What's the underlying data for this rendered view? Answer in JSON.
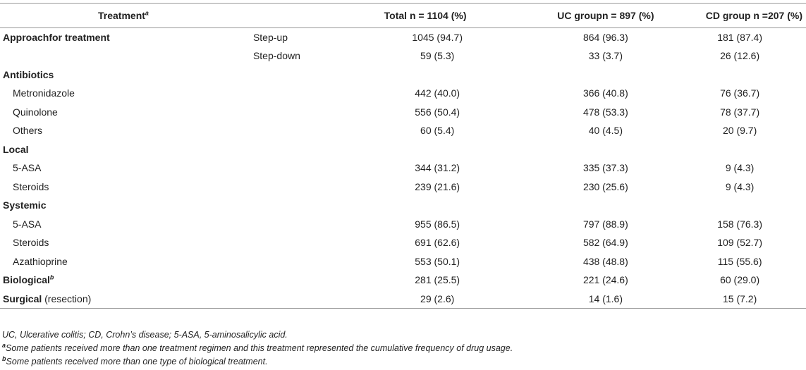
{
  "header": {
    "treatment": "Treatment",
    "treatment_sup": "a",
    "total": "Total n = 1104 (%)",
    "uc": "UC groupn = 897 (%)",
    "cd": "CD group n =207 (%)"
  },
  "rows": [
    {
      "label": "Approachfor treatment",
      "level": "Step-up",
      "total": "1045 (94.7)",
      "uc": "864 (96.3)",
      "cd": "181 (87.4)"
    },
    {
      "label": "",
      "level": "Step-down",
      "total": "59 (5.3)",
      "uc": "33 (3.7)",
      "cd": "26 (12.6)"
    },
    {
      "label": "Antibiotics"
    },
    {
      "label": "Metronidazole",
      "total": "442 (40.0)",
      "uc": "366 (40.8)",
      "cd": "76 (36.7)"
    },
    {
      "label": "Quinolone",
      "total": "556 (50.4)",
      "uc": "478 (53.3)",
      "cd": "78 (37.7)"
    },
    {
      "label": "Others",
      "total": "60 (5.4)",
      "uc": "40 (4.5)",
      "cd": "20 (9.7)"
    },
    {
      "label": "Local"
    },
    {
      "label": "5-ASA",
      "total": "344 (31.2)",
      "uc": "335 (37.3)",
      "cd": "9 (4.3)"
    },
    {
      "label": "Steroids",
      "total": "239 (21.6)",
      "uc": "230 (25.6)",
      "cd": "9 (4.3)"
    },
    {
      "label": "Systemic"
    },
    {
      "label": "5-ASA",
      "total": "955 (86.5)",
      "uc": "797 (88.9)",
      "cd": "158 (76.3)"
    },
    {
      "label": "Steroids",
      "total": "691 (62.6)",
      "uc": "582 (64.9)",
      "cd": "109 (52.7)"
    },
    {
      "label": "Azathioprine",
      "total": "553 (50.1)",
      "uc": "438 (48.8)",
      "cd": "115 (55.6)"
    },
    {
      "label": "Biological",
      "sup": "b",
      "total": "281 (25.5)",
      "uc": "221 (24.6)",
      "cd": "60 (29.0)"
    },
    {
      "label": "Surgical",
      "suffix": "(resection)",
      "total": "29 (2.6)",
      "uc": "14 (1.6)",
      "cd": "15 (7.2)"
    }
  ],
  "notes": {
    "abbrev": "UC, Ulcerative colitis; CD, Crohn’s disease; 5-ASA, 5-aminosalicylic acid.",
    "a_mark": "a",
    "a_text": "Some patients received more than one treatment regimen and this treatment represented the cumulative frequency of drug usage.",
    "b_mark": "b",
    "b_text": "Some patients received more than one type of biological treatment."
  }
}
